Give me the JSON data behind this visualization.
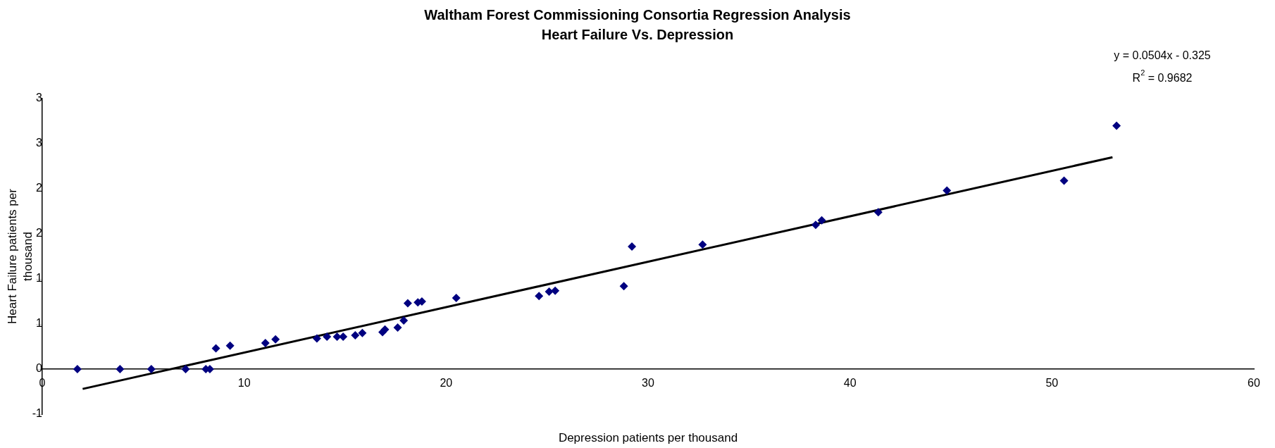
{
  "chart_data": {
    "type": "scatter",
    "title": "Waltham Forest Commissioning Consortia Regression Analysis",
    "subtitle": "Heart Failure Vs. Depression",
    "xlabel": "Depression patients per thousand",
    "ylabel": "Heart Failure patients per thousand",
    "x": [
      1.74,
      3.85,
      5.4,
      7.1,
      8.1,
      8.3,
      8.6,
      9.3,
      11.05,
      11.55,
      13.6,
      14.1,
      14.6,
      14.9,
      15.5,
      15.85,
      16.85,
      16.97,
      17.6,
      17.9,
      18.1,
      18.6,
      18.8,
      20.5,
      24.6,
      25.1,
      25.4,
      28.8,
      29.2,
      32.7,
      38.3,
      38.6,
      41.4,
      44.8,
      50.6,
      53.2
    ],
    "series": [
      {
        "color": "#000080",
        "values": [
          0,
          0,
          0,
          0,
          0,
          0,
          0.23,
          0.26,
          0.29,
          0.33,
          0.34,
          0.36,
          0.36,
          0.36,
          0.375,
          0.4,
          0.41,
          0.44,
          0.46,
          0.54,
          0.73,
          0.74,
          0.75,
          0.79,
          0.81,
          0.86,
          0.87,
          0.92,
          1.36,
          1.38,
          1.6,
          1.65,
          1.74,
          1.98,
          2.09,
          2.7
        ]
      },
      {
        "type": "line",
        "color": "#000000",
        "x": [
          2,
          53
        ],
        "values": [
          -0.22,
          2.35
        ],
        "marker": "none"
      }
    ],
    "marker": "diamond",
    "xlim": [
      0,
      60
    ],
    "xticks": [
      0,
      10,
      20,
      30,
      40,
      50,
      60
    ],
    "ylim": [
      -0.5,
      3
    ],
    "yticks": [
      {
        "value": -0.5,
        "label": "-1"
      },
      {
        "value": 0,
        "label": "0"
      },
      {
        "value": 0.5,
        "label": "1"
      },
      {
        "value": 1,
        "label": "1"
      },
      {
        "value": 1.5,
        "label": "2"
      },
      {
        "value": 2,
        "label": "2"
      },
      {
        "value": 2.5,
        "label": "3"
      },
      {
        "value": 3,
        "label": "3"
      }
    ],
    "grid": false,
    "legend": false,
    "annotations": [
      "y = 0.0504x - 0.325",
      "R$^{2}$ = 0.9682"
    ]
  }
}
